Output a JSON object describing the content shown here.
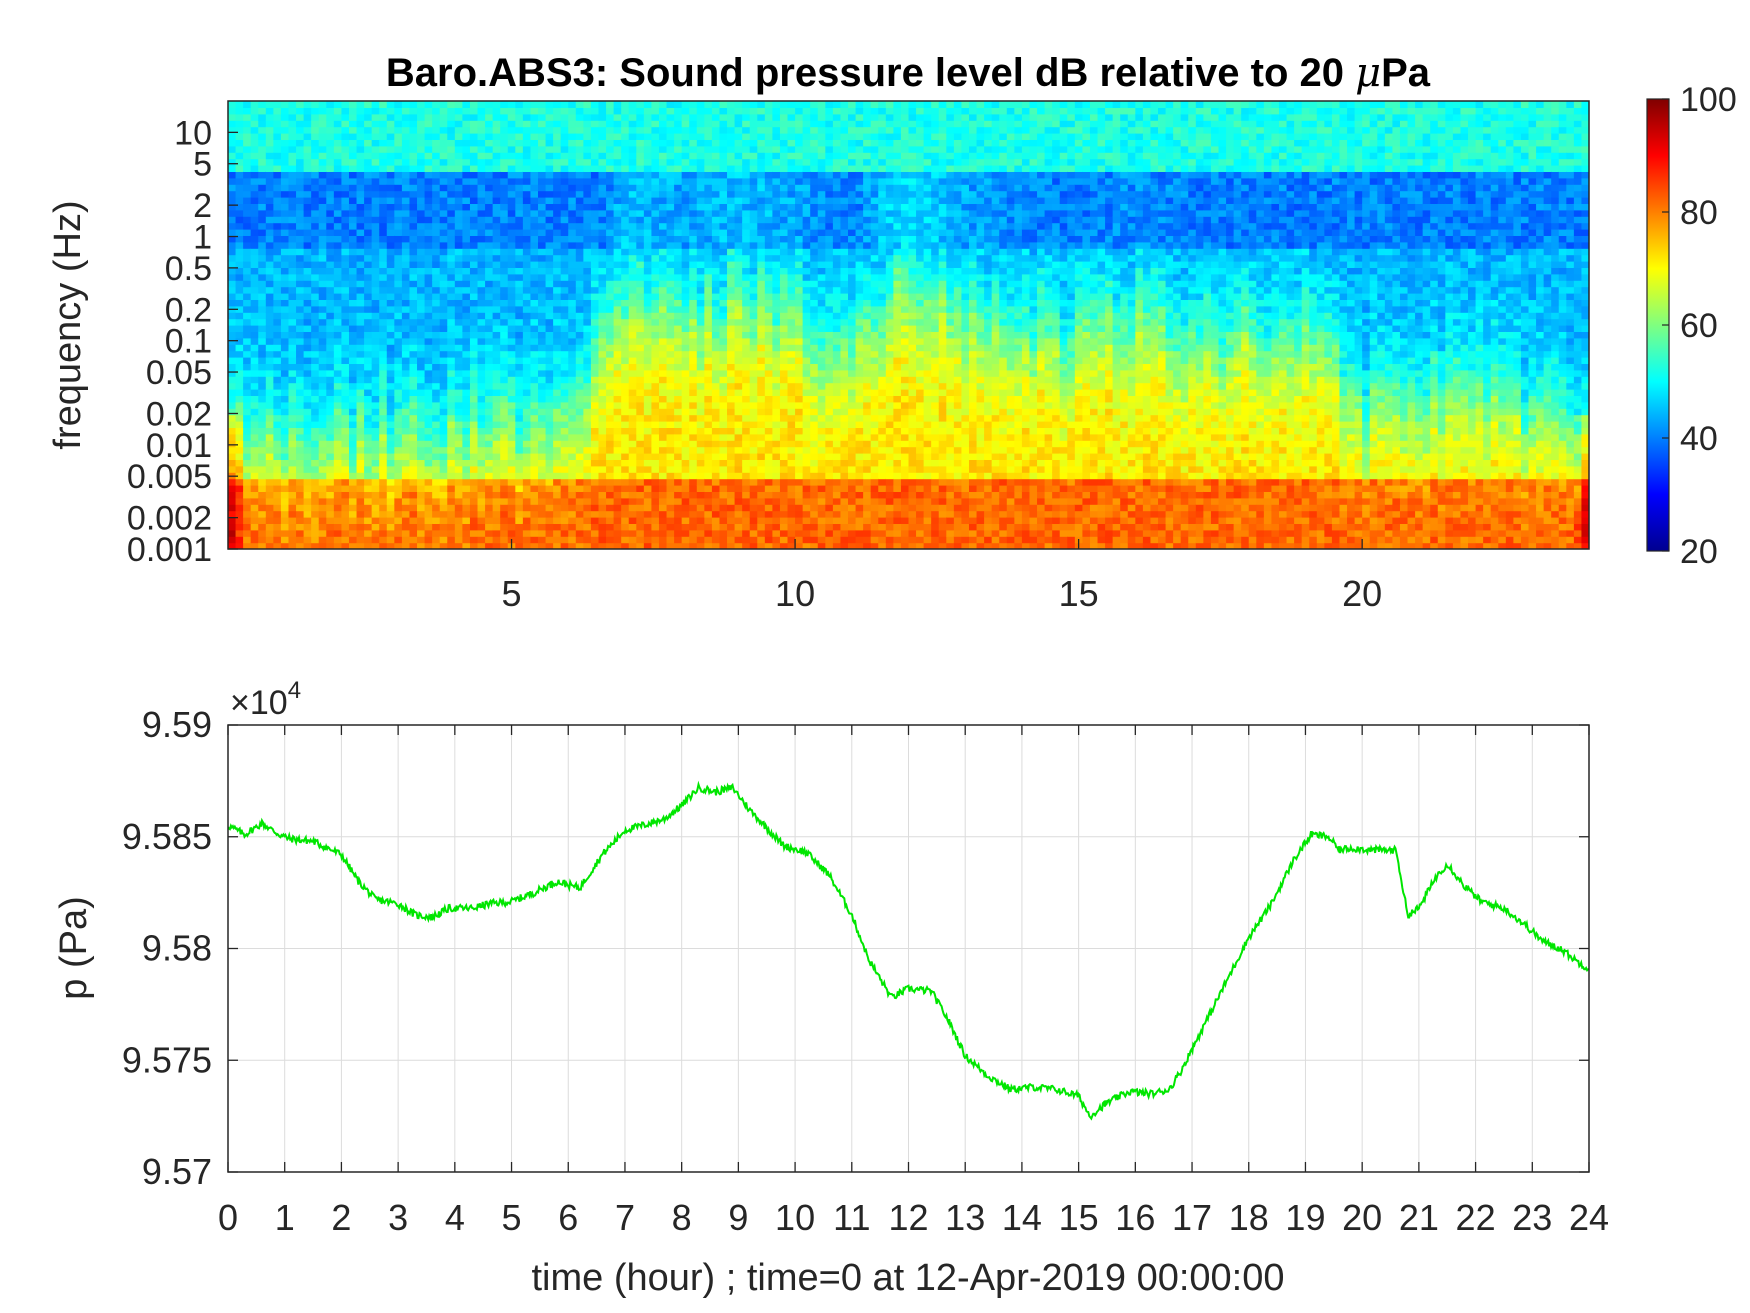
{
  "chart_data": [
    {
      "type": "heatmap",
      "title": "Baro.ABS3: Sound pressure level dB relative to 20 μPa",
      "title_prefix": "Baro.ABS3: Sound pressure level dB relative to 20 ",
      "title_mu": "μ",
      "title_suffix": "Pa",
      "ylabel": "frequency (Hz)",
      "xlabel": "",
      "y_scale": "log",
      "ylim": [
        0.001,
        20
      ],
      "xlim": [
        0,
        24
      ],
      "x_ticks": [
        5,
        10,
        15,
        20
      ],
      "x_tick_labels": [
        "5",
        "10",
        "15",
        "20"
      ],
      "y_ticks": [
        0.001,
        0.002,
        0.005,
        0.01,
        0.02,
        0.05,
        0.1,
        0.2,
        0.5,
        1,
        2,
        5,
        10
      ],
      "y_tick_labels": [
        "0.001",
        "0.002",
        "0.005",
        "0.01",
        "0.02",
        "0.05",
        "0.1",
        "0.2",
        "0.5",
        "1",
        "2",
        "5",
        "10"
      ],
      "colormap": "jet",
      "colorbar": {
        "range": [
          20,
          100
        ],
        "ticks": [
          20,
          40,
          60,
          80,
          100
        ],
        "tick_labels": [
          "20",
          "40",
          "60",
          "80",
          "100"
        ]
      },
      "activity_profile": {
        "time_hours": [
          0,
          1,
          2,
          3,
          4,
          5,
          6,
          6.5,
          7,
          8,
          9,
          10,
          11,
          12,
          13,
          14,
          15,
          16,
          17,
          18,
          19,
          20,
          21,
          22,
          23,
          24
        ],
        "loud_upper_freq_hz": [
          0.012,
          0.012,
          0.011,
          0.011,
          0.012,
          0.013,
          0.013,
          0.05,
          0.2,
          0.15,
          0.2,
          0.15,
          0.08,
          0.3,
          0.15,
          0.1,
          0.1,
          0.12,
          0.1,
          0.1,
          0.08,
          0.02,
          0.03,
          0.03,
          0.02,
          0.01
        ]
      }
    },
    {
      "type": "line",
      "xlabel": "time (hour) ; time=0 at 12-Apr-2019 00:00:00",
      "ylabel": "p (Pa)",
      "exponent_label": "×10",
      "exponent_value": "4",
      "xlim": [
        0,
        24
      ],
      "ylim": [
        95700,
        95900
      ],
      "grid": true,
      "x_ticks": [
        0,
        1,
        2,
        3,
        4,
        5,
        6,
        7,
        8,
        9,
        10,
        11,
        12,
        13,
        14,
        15,
        16,
        17,
        18,
        19,
        20,
        21,
        22,
        23,
        24
      ],
      "x_tick_labels": [
        "0",
        "1",
        "2",
        "3",
        "4",
        "5",
        "6",
        "7",
        "8",
        "9",
        "10",
        "11",
        "12",
        "13",
        "14",
        "15",
        "16",
        "17",
        "18",
        "19",
        "20",
        "21",
        "22",
        "23",
        "24"
      ],
      "y_ticks": [
        95700,
        95750,
        95800,
        95850,
        95900
      ],
      "y_tick_labels": [
        "9.57",
        "9.575",
        "9.58",
        "9.585",
        "9.59"
      ],
      "line_color": "#00e600",
      "series": [
        {
          "x": [
            0,
            0.3,
            0.6,
            0.9,
            1.1,
            1.5,
            2.0,
            2.3,
            2.6,
            3.0,
            3.3,
            3.6,
            3.9,
            4.3,
            4.6,
            5.0,
            5.4,
            5.8,
            6.2,
            6.6,
            7.0,
            7.3,
            7.7,
            8.0,
            8.3,
            8.6,
            8.9,
            9.2,
            9.5,
            9.8,
            10.2,
            10.6,
            11.0,
            11.3,
            11.7,
            12.0,
            12.4,
            12.7,
            13.0,
            13.4,
            13.8,
            14.2,
            14.6,
            15.0,
            15.2,
            15.5,
            15.9,
            16.3,
            16.6,
            16.8,
            17.2,
            17.6,
            18.0,
            18.4,
            18.8,
            19.1,
            19.4,
            19.6,
            19.8,
            20.2,
            20.6,
            20.8,
            21.0,
            21.3,
            21.5,
            21.8,
            22.1,
            22.5,
            22.9,
            23.2,
            23.5,
            23.8,
            24.0
          ],
          "y": [
            95855,
            95851,
            95856,
            95851,
            95849,
            95848,
            95842,
            95830,
            95822,
            95820,
            95815,
            95814,
            95818,
            95818,
            95820,
            95821,
            95825,
            95830,
            95827,
            95842,
            95853,
            95855,
            95858,
            95864,
            95872,
            95870,
            95872,
            95862,
            95854,
            95846,
            95843,
            95833,
            95815,
            95795,
            95778,
            95782,
            95781,
            95768,
            95752,
            95743,
            95737,
            95738,
            95737,
            95734,
            95725,
            95731,
            95736,
            95735,
            95737,
            95745,
            95765,
            95785,
            95805,
            95820,
            95840,
            95851,
            95850,
            95844,
            95845,
            95844,
            95844,
            95815,
            95818,
            95832,
            95838,
            95828,
            95821,
            95818,
            95810,
            95803,
            95800,
            95794,
            95791
          ]
        }
      ]
    }
  ]
}
